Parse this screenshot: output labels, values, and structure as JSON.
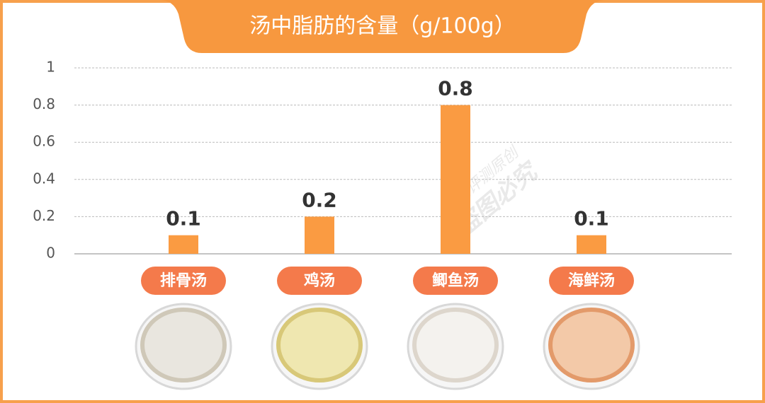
{
  "chart_data": {
    "type": "bar",
    "title": "汤中脂肪的含量（g/100g）",
    "categories": [
      "排骨汤",
      "鸡汤",
      "鲫鱼汤",
      "海鲜汤"
    ],
    "values": [
      0.1,
      0.2,
      0.8,
      0.1
    ],
    "color": "#fa9b42",
    "ylim": [
      0,
      1
    ],
    "yticks": [
      0,
      0.2,
      0.4,
      0.6,
      0.8,
      1
    ],
    "grid": true,
    "annotations": [
      "老爸评测原创",
      "盗图必究"
    ]
  }
}
